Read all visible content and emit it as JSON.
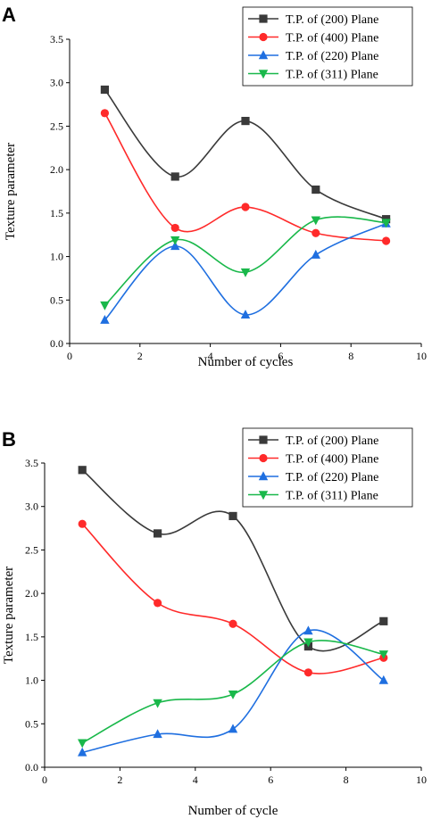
{
  "chart_data": [
    {
      "type": "line",
      "panel_label": "A",
      "xlabel": "Number of cycles",
      "ylabel": "Texture parameter",
      "xlim": [
        0,
        10
      ],
      "ylim": [
        0.0,
        3.5
      ],
      "xticks": [
        "0",
        "2",
        "4",
        "6",
        "8",
        "10"
      ],
      "yticks": [
        "0.0",
        "0.5",
        "1.0",
        "1.5",
        "2.0",
        "2.5",
        "3.0",
        "3.5"
      ],
      "grid": false,
      "legend_position": "top-right",
      "x": [
        1,
        3,
        5,
        7,
        9
      ],
      "series": [
        {
          "name": "T.P. of (200) Plane",
          "color": "#3a3a3a",
          "marker": "square",
          "values": [
            2.92,
            1.92,
            2.56,
            1.77,
            1.43
          ]
        },
        {
          "name": "T.P. of (400) Plane",
          "color": "#ff2a2a",
          "marker": "circle",
          "values": [
            2.65,
            1.33,
            1.57,
            1.27,
            1.18
          ]
        },
        {
          "name": "T.P. of (220) Plane",
          "color": "#1f6fe0",
          "marker": "triangle-up",
          "values": [
            0.27,
            1.12,
            0.33,
            1.02,
            1.38
          ]
        },
        {
          "name": "T.P. of (311) Plane",
          "color": "#19b84a",
          "marker": "triangle-down",
          "values": [
            0.44,
            1.19,
            0.82,
            1.42,
            1.39
          ]
        }
      ]
    },
    {
      "type": "line",
      "panel_label": "B",
      "xlabel": "Number of cycle",
      "ylabel": "Texture parameter",
      "xlim": [
        0,
        10
      ],
      "ylim": [
        0.0,
        3.5
      ],
      "xticks": [
        "0",
        "2",
        "4",
        "6",
        "8",
        "10"
      ],
      "yticks": [
        "0.0",
        "0.5",
        "1.0",
        "1.5",
        "2.0",
        "2.5",
        "3.0",
        "3.5"
      ],
      "grid": false,
      "legend_position": "top-right",
      "x": [
        1,
        3,
        5,
        7,
        9
      ],
      "series": [
        {
          "name": "T.P. of (200) Plane",
          "color": "#3a3a3a",
          "marker": "square",
          "values": [
            3.42,
            2.69,
            2.89,
            1.39,
            1.68
          ]
        },
        {
          "name": "T.P. of (400) Plane",
          "color": "#ff2a2a",
          "marker": "circle",
          "values": [
            2.8,
            1.89,
            1.65,
            1.09,
            1.26
          ]
        },
        {
          "name": "T.P. of (220) Plane",
          "color": "#1f6fe0",
          "marker": "triangle-up",
          "values": [
            0.17,
            0.38,
            0.44,
            1.57,
            1.0
          ]
        },
        {
          "name": "T.P. of (311) Plane",
          "color": "#19b84a",
          "marker": "triangle-down",
          "values": [
            0.28,
            0.74,
            0.84,
            1.44,
            1.3
          ]
        }
      ]
    }
  ]
}
